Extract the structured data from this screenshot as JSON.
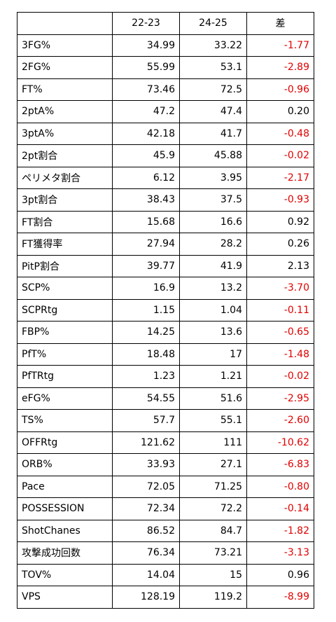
{
  "table": {
    "headers": [
      "",
      "22-23",
      "24-25",
      "差"
    ],
    "rows": [
      {
        "label": "3FG%",
        "a": "34.99",
        "b": "33.22",
        "diff": "-1.77",
        "negative": true
      },
      {
        "label": "2FG%",
        "a": "55.99",
        "b": "53.1",
        "diff": "-2.89",
        "negative": true
      },
      {
        "label": "FT%",
        "a": "73.46",
        "b": "72.5",
        "diff": "-0.96",
        "negative": true
      },
      {
        "label": "2ptA%",
        "a": "47.2",
        "b": "47.4",
        "diff": "0.20",
        "negative": false
      },
      {
        "label": "3ptA%",
        "a": "42.18",
        "b": "41.7",
        "diff": "-0.48",
        "negative": true
      },
      {
        "label": "2pt割合",
        "a": "45.9",
        "b": "45.88",
        "diff": "-0.02",
        "negative": true
      },
      {
        "label": "ペリメタ割合",
        "a": "6.12",
        "b": "3.95",
        "diff": "-2.17",
        "negative": true
      },
      {
        "label": "3pt割合",
        "a": "38.43",
        "b": "37.5",
        "diff": "-0.93",
        "negative": true
      },
      {
        "label": "FT割合",
        "a": "15.68",
        "b": "16.6",
        "diff": "0.92",
        "negative": false
      },
      {
        "label": "FT獲得率",
        "a": "27.94",
        "b": "28.2",
        "diff": "0.26",
        "negative": false
      },
      {
        "label": "PitP割合",
        "a": "39.77",
        "b": "41.9",
        "diff": "2.13",
        "negative": false
      },
      {
        "label": "SCP%",
        "a": "16.9",
        "b": "13.2",
        "diff": "-3.70",
        "negative": true
      },
      {
        "label": "SCPRtg",
        "a": "1.15",
        "b": "1.04",
        "diff": "-0.11",
        "negative": true
      },
      {
        "label": "FBP%",
        "a": "14.25",
        "b": "13.6",
        "diff": "-0.65",
        "negative": true
      },
      {
        "label": "PfT%",
        "a": "18.48",
        "b": "17",
        "diff": "-1.48",
        "negative": true
      },
      {
        "label": "PfTRtg",
        "a": "1.23",
        "b": "1.21",
        "diff": "-0.02",
        "negative": true
      },
      {
        "label": "eFG%",
        "a": "54.55",
        "b": "51.6",
        "diff": "-2.95",
        "negative": true
      },
      {
        "label": "TS%",
        "a": "57.7",
        "b": "55.1",
        "diff": "-2.60",
        "negative": true
      },
      {
        "label": "OFFRtg",
        "a": "121.62",
        "b": "111",
        "diff": "-10.62",
        "negative": true
      },
      {
        "label": "ORB%",
        "a": "33.93",
        "b": "27.1",
        "diff": "-6.83",
        "negative": true
      },
      {
        "label": "Pace",
        "a": "72.05",
        "b": "71.25",
        "diff": "-0.80",
        "negative": true
      },
      {
        "label": "POSSESSION",
        "a": "72.34",
        "b": "72.2",
        "diff": "-0.14",
        "negative": true
      },
      {
        "label": "ShotChanes",
        "a": "86.52",
        "b": "84.7",
        "diff": "-1.82",
        "negative": true
      },
      {
        "label": "攻撃成功回数",
        "a": "76.34",
        "b": "73.21",
        "diff": "-3.13",
        "negative": true
      },
      {
        "label": "TOV%",
        "a": "14.04",
        "b": "15",
        "diff": "0.96",
        "negative": false
      },
      {
        "label": "VPS",
        "a": "128.19",
        "b": "119.2",
        "diff": "-8.99",
        "negative": true
      }
    ]
  },
  "colors": {
    "negative_text": "#e00000",
    "text": "#000000",
    "border": "#000000"
  }
}
